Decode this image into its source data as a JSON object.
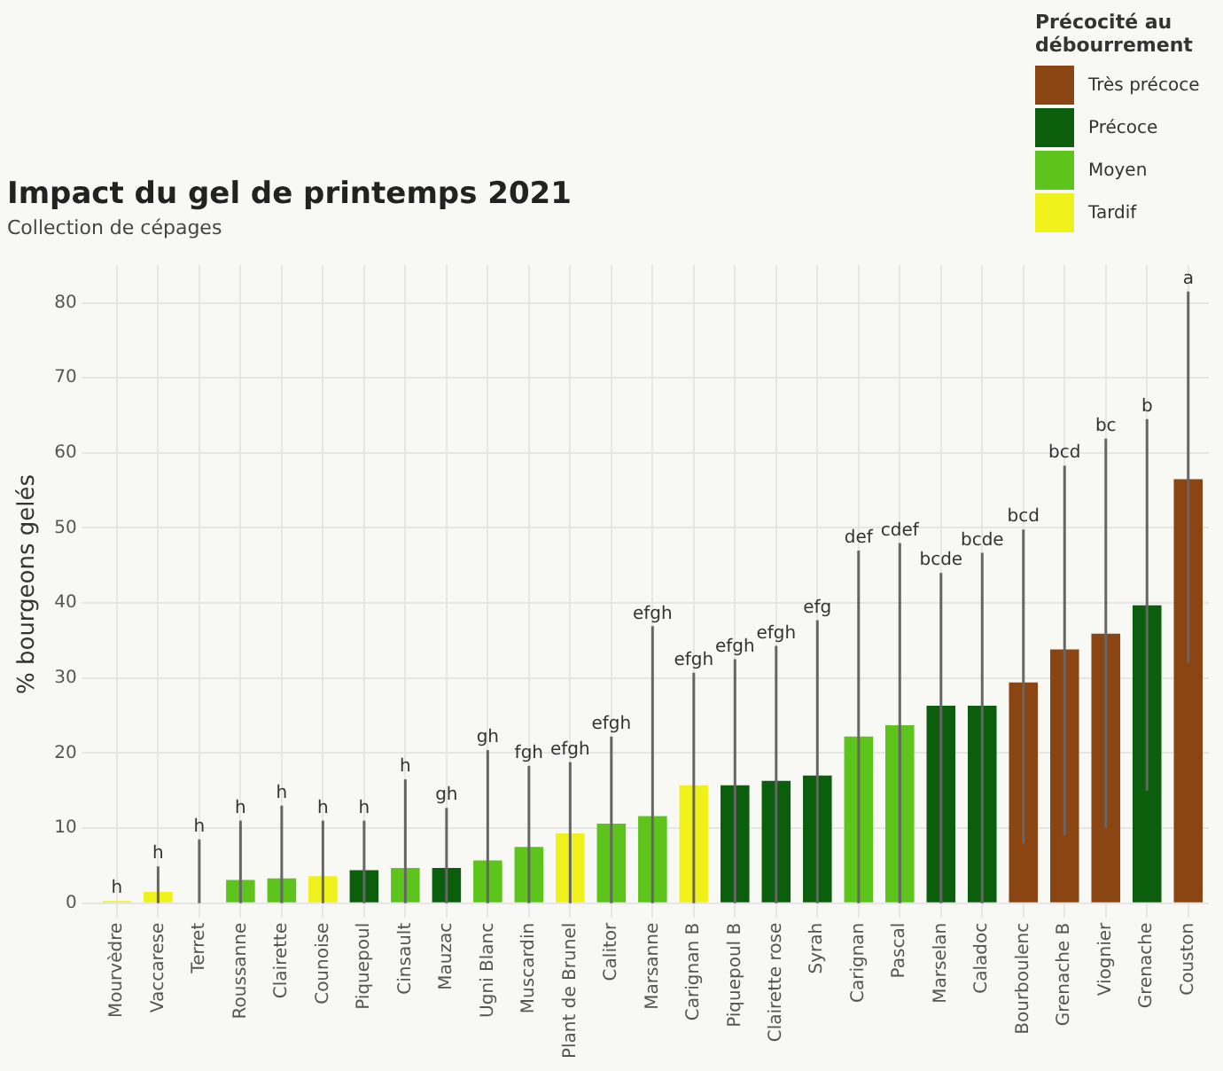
{
  "chart_data": {
    "type": "bar",
    "title": "Impact du gel de printemps 2021",
    "subtitle": "Collection de cépages",
    "ylabel": "% bourgeons gelés",
    "legend_title": "Précocité au débourrement",
    "categories": [
      "Mourvèdre",
      "Vaccarese",
      "Terret",
      "Roussanne",
      "Clairette",
      "Counoise",
      "Piquepoul",
      "Cinsault",
      "Mauzac",
      "Ugni Blanc",
      "Muscardin",
      "Plant de Brunel",
      "Calitor",
      "Marsanne",
      "Carignan B",
      "Piquepoul B",
      "Clairette rose",
      "Syrah",
      "Carignan",
      "Pascal",
      "Marselan",
      "Caladoc",
      "Bourboulenc",
      "Grenache B",
      "Viognier",
      "Grenache",
      "Couston"
    ],
    "series": [
      {
        "name": "Très précoce",
        "color": "#8b4513",
        "values": [
          null,
          null,
          null,
          null,
          null,
          null,
          null,
          null,
          null,
          null,
          null,
          null,
          null,
          null,
          null,
          null,
          null,
          null,
          null,
          null,
          null,
          null,
          29.4,
          33.8,
          35.9,
          null,
          56.5
        ],
        "errors": [
          null,
          null,
          null,
          null,
          null,
          null,
          null,
          null,
          null,
          null,
          null,
          null,
          null,
          null,
          null,
          null,
          null,
          null,
          null,
          null,
          null,
          null,
          [
            8,
            49.8
          ],
          [
            9,
            58.3
          ],
          [
            10,
            61.9
          ],
          null,
          [
            32,
            81.5
          ]
        ]
      },
      {
        "name": "Précoce",
        "color": "#0b5e0b",
        "values": [
          null,
          null,
          null,
          null,
          null,
          null,
          4.4,
          null,
          4.7,
          null,
          null,
          null,
          null,
          null,
          null,
          15.7,
          16.3,
          17,
          null,
          null,
          26.3,
          26.3,
          null,
          null,
          null,
          39.7,
          null
        ],
        "errors": [
          null,
          null,
          null,
          null,
          null,
          null,
          [
            0,
            11
          ],
          null,
          [
            0,
            12.7
          ],
          null,
          null,
          null,
          null,
          null,
          null,
          [
            0,
            32.5
          ],
          [
            0,
            34.3
          ],
          [
            0,
            37.7
          ],
          null,
          null,
          [
            0,
            44
          ],
          [
            0,
            46.7
          ],
          null,
          null,
          null,
          [
            15,
            64.5
          ],
          null
        ]
      },
      {
        "name": "Moyen",
        "color": "#5cc41a",
        "values": [
          null,
          null,
          null,
          3.1,
          3.3,
          null,
          null,
          4.7,
          null,
          5.7,
          7.5,
          null,
          10.6,
          11.6,
          null,
          null,
          null,
          null,
          22.2,
          23.7,
          null,
          null,
          null,
          null,
          null,
          null,
          null
        ],
        "errors": [
          null,
          null,
          null,
          [
            0,
            11
          ],
          [
            0,
            13
          ],
          null,
          null,
          [
            0,
            16.5
          ],
          null,
          [
            0,
            20.4
          ],
          [
            0,
            18.3
          ],
          null,
          [
            0,
            22.2
          ],
          [
            0,
            36.9
          ],
          null,
          null,
          null,
          null,
          [
            0,
            47
          ],
          [
            0,
            48
          ],
          null,
          null,
          null,
          null,
          null,
          null,
          null
        ]
      },
      {
        "name": "Tardif",
        "color": "#f0f01a",
        "values": [
          0.3,
          1.5,
          0,
          null,
          null,
          3.6,
          null,
          null,
          null,
          null,
          null,
          9.3,
          null,
          null,
          15.7,
          null,
          null,
          null,
          null,
          null,
          null,
          null,
          null,
          null,
          null,
          null,
          null
        ],
        "errors": [
          null,
          [
            0,
            4.9
          ],
          [
            0,
            8.5
          ],
          null,
          null,
          [
            0,
            11
          ],
          null,
          null,
          null,
          null,
          null,
          [
            0,
            18.8
          ],
          null,
          null,
          [
            0,
            30.7
          ],
          null,
          null,
          null,
          null,
          null,
          null,
          null,
          null,
          null,
          null,
          null,
          null
        ]
      }
    ],
    "annotations": [
      {
        "text": "h",
        "x": "Mourvèdre",
        "y": 0.3
      },
      {
        "text": "h",
        "x": "Vaccarese",
        "y": 4.9
      },
      {
        "text": "h",
        "x": "Terret",
        "y": 8.5
      },
      {
        "text": "h",
        "x": "Roussanne",
        "y": 11
      },
      {
        "text": "h",
        "x": "Clairette",
        "y": 13
      },
      {
        "text": "h",
        "x": "Counoise",
        "y": 11
      },
      {
        "text": "h",
        "x": "Piquepoul",
        "y": 11
      },
      {
        "text": "h",
        "x": "Cinsault",
        "y": 16.5
      },
      {
        "text": "gh",
        "x": "Mauzac",
        "y": 12.7
      },
      {
        "text": "gh",
        "x": "Ugni Blanc",
        "y": 20.4
      },
      {
        "text": "fgh",
        "x": "Muscardin",
        "y": 18.3
      },
      {
        "text": "efgh",
        "x": "Plant de Brunel",
        "y": 18.8
      },
      {
        "text": "efgh",
        "x": "Calitor",
        "y": 22.2
      },
      {
        "text": "efgh",
        "x": "Marsanne",
        "y": 36.9
      },
      {
        "text": "efgh",
        "x": "Carignan B",
        "y": 30.7
      },
      {
        "text": "efgh",
        "x": "Piquepoul B",
        "y": 32.5
      },
      {
        "text": "efgh",
        "x": "Clairette rose",
        "y": 34.3
      },
      {
        "text": "efg",
        "x": "Syrah",
        "y": 37.7
      },
      {
        "text": "def",
        "x": "Carignan",
        "y": 47
      },
      {
        "text": "cdef",
        "x": "Pascal",
        "y": 48
      },
      {
        "text": "bcde",
        "x": "Marselan",
        "y": 44
      },
      {
        "text": "bcde",
        "x": "Caladoc",
        "y": 46.7
      },
      {
        "text": "bcd",
        "x": "Bourboulenc",
        "y": 49.8
      },
      {
        "text": "bcd",
        "x": "Grenache B",
        "y": 58.3
      },
      {
        "text": "bc",
        "x": "Viognier",
        "y": 61.9
      },
      {
        "text": "b",
        "x": "Grenache",
        "y": 64.5
      },
      {
        "text": "a",
        "x": "Couston",
        "y": 81.5
      }
    ],
    "ylim": [
      0,
      85
    ],
    "yticks": [
      0,
      10,
      20,
      30,
      40,
      50,
      60,
      70,
      80
    ],
    "grid": true,
    "legend": "top right"
  }
}
